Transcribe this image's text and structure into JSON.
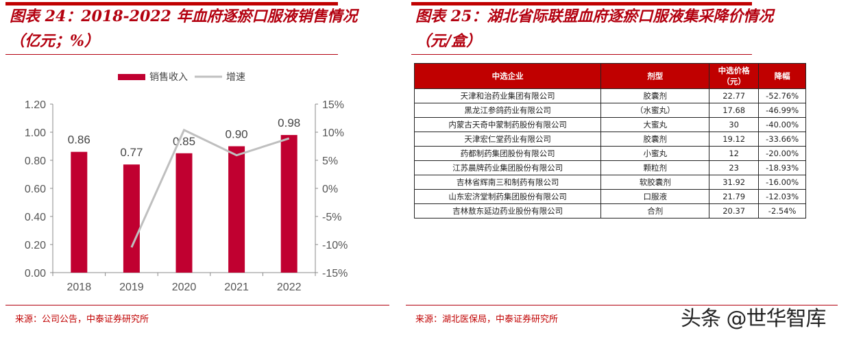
{
  "left_panel": {
    "title_line1": "图表 24：2018-2022 年血府逐瘀口服液销售情况",
    "title_line2": "（亿元；%）",
    "source": "来源：公司公告，中泰证券研究所"
  },
  "right_panel": {
    "title_line1": "图表 25：湖北省际联盟血府逐瘀口服液集采降价情况",
    "title_line2": "（元/盒）",
    "source": "来源：湖北医保局，中泰证券研究所",
    "table": {
      "headers": [
        "中选企业",
        "剂型",
        "中选价格\n（元）",
        "降幅"
      ],
      "header_price_l1": "中选价格",
      "header_price_l2": "（元）",
      "rows": [
        [
          "天津和治药业集团有限公司",
          "胶囊剂",
          "22.77",
          "-52.76%"
        ],
        [
          "黑龙江参鸽药业有限公司",
          "（水蜜丸）",
          "17.68",
          "-46.99%"
        ],
        [
          "内蒙古天奇中蒙制药股份有限公司",
          "大蜜丸",
          "30",
          "-40.00%"
        ],
        [
          "天津宏仁堂药业有限公司",
          "胶囊剂",
          "19.12",
          "-33.66%"
        ],
        [
          "药都制药集团股份有限公司",
          "小蜜丸",
          "12",
          "-20.00%"
        ],
        [
          "江苏晨牌药业集团股份有限公司",
          "颗粒剂",
          "23",
          "-18.93%"
        ],
        [
          "吉林省辉南三和制药有限公司",
          "软胶囊剂",
          "31.92",
          "-16.00%"
        ],
        [
          "山东宏济堂制药集团股份有限公司",
          "口服液",
          "21.79",
          "-12.03%"
        ],
        [
          "吉林敖东延边药业股份有限公司",
          "合剂",
          "20.37",
          "-2.54%"
        ]
      ]
    }
  },
  "watermark": "头条 @世华智库",
  "colors": {
    "bar": "#c00030",
    "line": "#bfbfbf",
    "title": "#b3000f",
    "header_bg": "#c00000"
  },
  "chart_data": [
    {
      "type": "bar+line",
      "title": "2018-2022 年血府逐瘀口服液销售情况（亿元；%）",
      "categories": [
        "2018",
        "2019",
        "2020",
        "2021",
        "2022"
      ],
      "series": [
        {
          "name": "销售收入",
          "type": "bar",
          "axis": "left",
          "values": [
            0.86,
            0.77,
            0.85,
            0.9,
            0.98
          ],
          "labels": [
            "0.86",
            "0.77",
            "0.85",
            "0.90",
            "0.98"
          ]
        },
        {
          "name": "增速",
          "type": "line",
          "axis": "right",
          "values": [
            null,
            -10.5,
            10.4,
            5.9,
            8.9
          ]
        }
      ],
      "left_axis": {
        "ylim": [
          0,
          1.2
        ],
        "ticks": [
          "0.00",
          "0.20",
          "0.40",
          "0.60",
          "0.80",
          "1.00",
          "1.20"
        ]
      },
      "right_axis": {
        "ylim": [
          -15,
          15
        ],
        "ticks": [
          "-15%",
          "-10%",
          "-5%",
          "0%",
          "5%",
          "10%",
          "15%"
        ]
      },
      "legend": [
        "销售收入",
        "增速"
      ],
      "legend_position": "top",
      "grid": false
    },
    {
      "type": "table",
      "title": "湖北省际联盟血府逐瘀口服液集采降价情况（元/盒）",
      "columns": [
        "中选企业",
        "剂型",
        "中选价格（元）",
        "降幅"
      ],
      "rows": [
        [
          "天津和治药业集团有限公司",
          "胶囊剂",
          22.77,
          "-52.76%"
        ],
        [
          "黑龙江参鸽药业有限公司",
          "（水蜜丸）",
          17.68,
          "-46.99%"
        ],
        [
          "内蒙古天奇中蒙制药股份有限公司",
          "大蜜丸",
          30,
          "-40.00%"
        ],
        [
          "天津宏仁堂药业有限公司",
          "胶囊剂",
          19.12,
          "-33.66%"
        ],
        [
          "药都制药集团股份有限公司",
          "小蜜丸",
          12,
          "-20.00%"
        ],
        [
          "江苏晨牌药业集团股份有限公司",
          "颗粒剂",
          23,
          "-18.93%"
        ],
        [
          "吉林省辉南三和制药有限公司",
          "软胶囊剂",
          31.92,
          "-16.00%"
        ],
        [
          "山东宏济堂制药集团股份有限公司",
          "口服液",
          21.79,
          "-12.03%"
        ],
        [
          "吉林敖东延边药业股份有限公司",
          "合剂",
          20.37,
          "-2.54%"
        ]
      ]
    }
  ]
}
